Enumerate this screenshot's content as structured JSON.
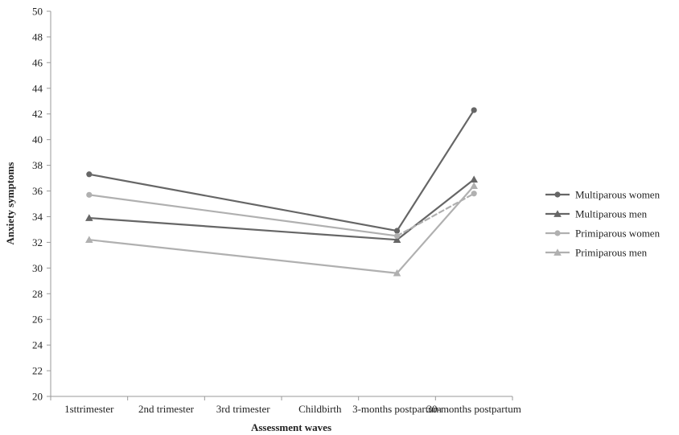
{
  "chart_data": {
    "type": "line",
    "xlabel": "Assessment waves",
    "ylabel": "Anxiety symptoms",
    "ylim": [
      20,
      50
    ],
    "ytick_step": 2,
    "categories": [
      "1sttrimester",
      "2nd trimester",
      "3rd trimester",
      "Childbirth",
      "3-months postpartum",
      "30-months postpartum"
    ],
    "grid": false,
    "legend_position": "right",
    "series": [
      {
        "name": "Multiparous women",
        "marker": "circle",
        "color": "#666666",
        "points": [
          {
            "x": "1sttrimester",
            "y": 37.3
          },
          {
            "x": "3-months postpartum",
            "y": 32.9
          },
          {
            "x": "30-months postpartum",
            "y": 42.3
          }
        ]
      },
      {
        "name": "Multiparous men",
        "marker": "triangle",
        "color": "#666666",
        "points": [
          {
            "x": "1sttrimester",
            "y": 33.9
          },
          {
            "x": "3-months postpartum",
            "y": 32.2
          },
          {
            "x": "30-months postpartum",
            "y": 36.9
          }
        ]
      },
      {
        "name": "Primiparous women",
        "marker": "circle",
        "color": "#b0b0b0",
        "dashed_last_segment": true,
        "points": [
          {
            "x": "1sttrimester",
            "y": 35.7
          },
          {
            "x": "3-months postpartum",
            "y": 32.5
          },
          {
            "x": "30-months postpartum",
            "y": 35.8
          }
        ]
      },
      {
        "name": "Primiparous men",
        "marker": "triangle",
        "color": "#b0b0b0",
        "points": [
          {
            "x": "1sttrimester",
            "y": 32.2
          },
          {
            "x": "3-months postpartum",
            "y": 29.6
          },
          {
            "x": "30-months postpartum",
            "y": 36.4
          }
        ]
      }
    ]
  }
}
